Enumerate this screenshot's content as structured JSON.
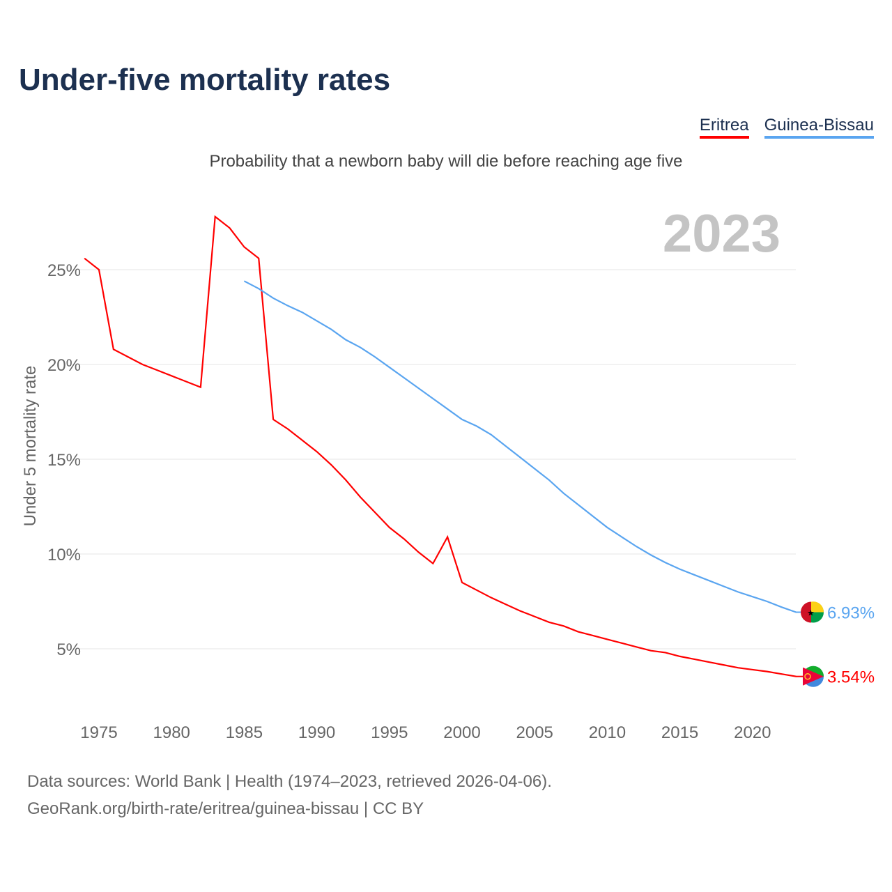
{
  "title": "Under-five mortality rates",
  "subtitle": "Probability that a newborn baby will die before reaching age five",
  "source_line1": "Data sources: World Bank | Health (1974–2023, retrieved 2026-04-06).",
  "source_line2": "GeoRank.org/birth-rate/eritrea/guinea-bissau | CC BY",
  "year_label": "2023",
  "chart_data": {
    "type": "line",
    "title": "Under-five mortality rates",
    "ylabel": "Under 5 mortality rate",
    "xlabel": "",
    "xlim": [
      1974,
      2023
    ],
    "ylim": [
      0,
      28
    ],
    "x_ticks": [
      1975,
      1980,
      1985,
      1990,
      1995,
      2000,
      2005,
      2010,
      2015,
      2020
    ],
    "y_ticks": [
      {
        "v": 5,
        "label": "5%"
      },
      {
        "v": 10,
        "label": "10%"
      },
      {
        "v": 15,
        "label": "15%"
      },
      {
        "v": 20,
        "label": "20%"
      },
      {
        "v": 25,
        "label": "25%"
      }
    ],
    "grid": true,
    "legend": "top-right",
    "series": [
      {
        "name": "Eritrea",
        "color": "#ff0000",
        "end_label": "3.54%",
        "start": 1974,
        "values": [
          25.6,
          25.0,
          20.8,
          20.4,
          20.0,
          19.7,
          19.4,
          19.1,
          18.8,
          27.8,
          27.2,
          26.2,
          25.6,
          17.1,
          16.6,
          16.0,
          15.4,
          14.7,
          13.9,
          13.0,
          12.2,
          11.4,
          10.8,
          10.1,
          9.5,
          10.9,
          8.5,
          8.1,
          7.7,
          7.35,
          7.0,
          6.7,
          6.4,
          6.2,
          5.9,
          5.7,
          5.5,
          5.3,
          5.1,
          4.9,
          4.8,
          4.6,
          4.45,
          4.3,
          4.15,
          4.0,
          3.9,
          3.8,
          3.67,
          3.54
        ]
      },
      {
        "name": "Guinea-Bissau",
        "color": "#5aa5f0",
        "end_label": "6.93%",
        "start": 1985,
        "values": [
          24.4,
          24.0,
          23.5,
          23.1,
          22.75,
          22.3,
          21.85,
          21.3,
          20.9,
          20.4,
          19.85,
          19.3,
          18.75,
          18.2,
          17.65,
          17.1,
          16.75,
          16.3,
          15.7,
          15.1,
          14.5,
          13.9,
          13.2,
          12.6,
          12.0,
          11.4,
          10.9,
          10.4,
          9.95,
          9.55,
          9.2,
          8.9,
          8.6,
          8.3,
          8.0,
          7.75,
          7.5,
          7.2,
          6.93
        ]
      }
    ]
  }
}
